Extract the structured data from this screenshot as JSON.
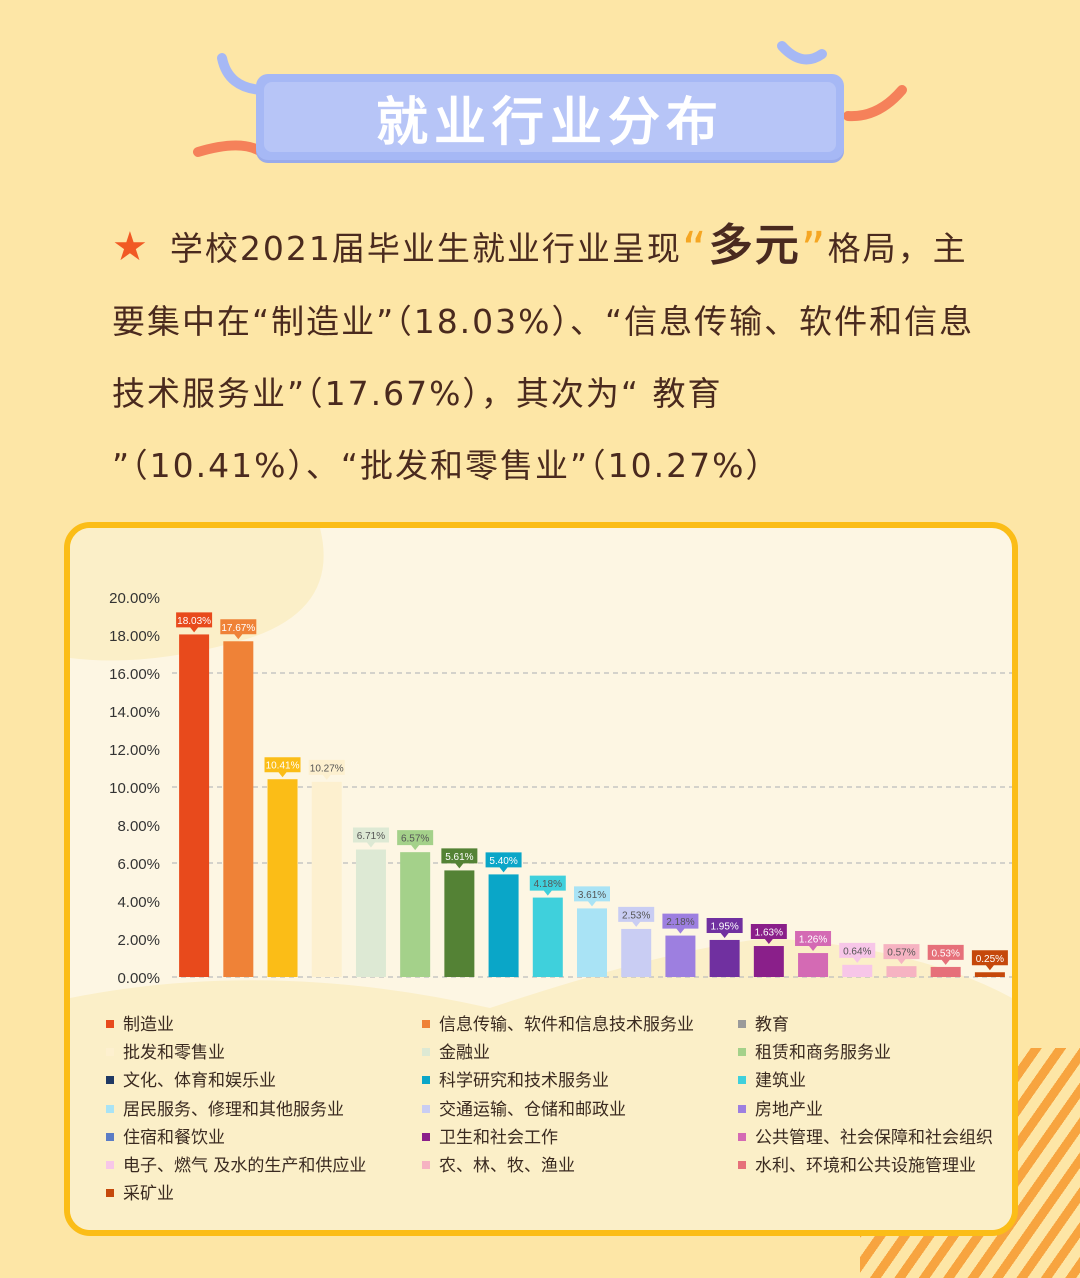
{
  "title": "就业行业分布",
  "intro": {
    "star": "★",
    "part1": "学校2021届毕业生就业行业呈现",
    "quote_open": "“",
    "highlight": "多元",
    "quote_close": "”",
    "part2": "格局，主要集中在“制造业”（18.03%）、“信息传输、软件和信息技术服务业”（17.67%），其次为“ 教育 ”（10.41%）、“批发和零售业”（10.27%）"
  },
  "colors": {
    "background": "#fde6a6",
    "panel_border": "#fbbd17",
    "title_box": "#a6b8f5",
    "star": "#f15a24"
  },
  "chart_data": {
    "type": "bar",
    "title": "",
    "xlabel": "",
    "ylabel": "",
    "ylim": [
      0,
      20
    ],
    "y_ticks": [
      "0.00%",
      "2.00%",
      "4.00%",
      "6.00%",
      "8.00%",
      "10.00%",
      "12.00%",
      "14.00%",
      "16.00%",
      "18.00%",
      "20.00%"
    ],
    "grid": "dashed at 6%, 10%, 16%",
    "legend_position": "bottom",
    "categories": [
      "制造业",
      "信息传输、软件和信息技术服务业",
      "教育",
      "批发和零售业",
      "金融业",
      "租赁和商务服务业",
      "文化、体育和娱乐业",
      "科学研究和技术服务业",
      "建筑业",
      "居民服务、修理和其他服务业",
      "交通运输、仓储和邮政业",
      "房地产业",
      "住宿和餐饮业",
      "卫生和社会工作",
      "公共管理、社会保障和社会组织",
      "电子、燃气 及水的生产和供应业",
      "农、林、牧、渔业",
      "水利、环境和公共设施管理业",
      "采矿业"
    ],
    "legend_colors": [
      "#e84a1c",
      "#ef8237",
      "#9a9a9a",
      "#fdf0cf",
      "#dde9d4",
      "#a4d18a",
      "#1f3864",
      "#0aa6c8",
      "#3fd0dc",
      "#a9e3f5",
      "#c9cdf3",
      "#9d7fe0",
      "#5b7cc5",
      "#8a1f8a",
      "#d46ab4",
      "#f7c6e8",
      "#f6b3c2",
      "#e6707a",
      "#c5480b"
    ],
    "bars": [
      {
        "value": 18.03,
        "label": "18.03%",
        "color": "#e84a1c"
      },
      {
        "value": 17.67,
        "label": "17.67%",
        "color": "#ef8237"
      },
      {
        "value": 10.41,
        "label": "10.41%",
        "color": "#fbbd17"
      },
      {
        "value": 10.27,
        "label": "10.27%",
        "color": "#fdf0cf"
      },
      {
        "value": 6.71,
        "label": "6.71%",
        "color": "#dde9d4"
      },
      {
        "value": 6.57,
        "label": "6.57%",
        "color": "#a4d18a"
      },
      {
        "value": 5.61,
        "label": "5.61%",
        "color": "#548235"
      },
      {
        "value": 5.4,
        "label": "5.40%",
        "color": "#0aa6c8"
      },
      {
        "value": 4.18,
        "label": "4.18%",
        "color": "#3fd0dc"
      },
      {
        "value": 3.61,
        "label": "3.61%",
        "color": "#a9e3f5"
      },
      {
        "value": 2.53,
        "label": "2.53%",
        "color": "#c9cdf3"
      },
      {
        "value": 2.18,
        "label": "2.18%",
        "color": "#9d7fe0"
      },
      {
        "value": 1.95,
        "label": "1.95%",
        "color": "#7030a0"
      },
      {
        "value": 1.63,
        "label": "1.63%",
        "color": "#8a1f8a"
      },
      {
        "value": 1.26,
        "label": "1.26%",
        "color": "#d46ab4"
      },
      {
        "value": 0.64,
        "label": "0.64%",
        "color": "#f7c6e8"
      },
      {
        "value": 0.57,
        "label": "0.57%",
        "color": "#f6b3c2"
      },
      {
        "value": 0.53,
        "label": "0.53%",
        "color": "#e6707a"
      },
      {
        "value": 0.25,
        "label": "0.25%",
        "color": "#c5480b"
      }
    ]
  }
}
